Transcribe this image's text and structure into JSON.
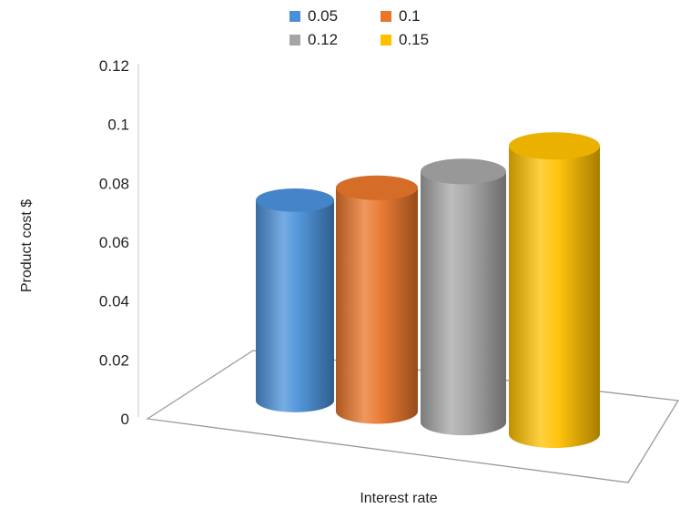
{
  "chart_data": {
    "type": "bar",
    "style": "3d-cylinder",
    "categories": [
      "0.05",
      "0.1",
      "0.12",
      "0.15"
    ],
    "values": [
      0.074,
      0.08,
      0.087,
      0.097
    ],
    "colors": [
      "#4a90d9",
      "#e8752a",
      "#a5a5a5",
      "#ffc000"
    ],
    "xlabel": "Interest rate",
    "ylabel": "Product cost $",
    "ylim": [
      0,
      0.12
    ],
    "yticks": [
      "0",
      "0.02",
      "0.04",
      "0.06",
      "0.08",
      "0.1",
      "0.12"
    ],
    "legend": {
      "position": "top",
      "entries": [
        "0.05",
        "0.1",
        "0.12",
        "0.15"
      ]
    },
    "grid": false
  }
}
